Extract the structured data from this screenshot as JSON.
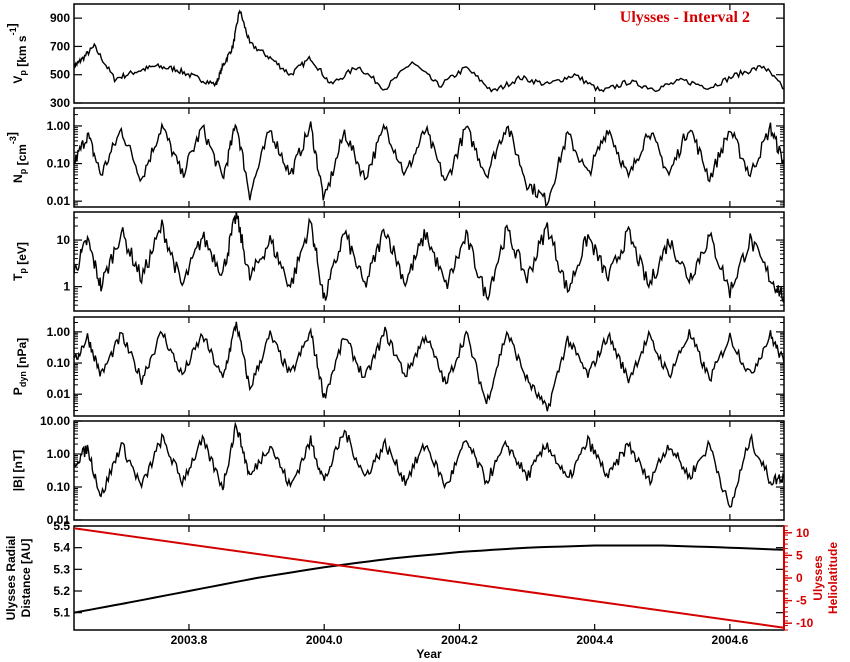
{
  "chart_data": [
    {
      "type": "line",
      "ylabel": "V_p [km s^-1]",
      "ylabel_main": "V",
      "ylabel_sub": "p",
      "ylabel_units": "[km s",
      "ylabel_sup": "-1",
      "ylabel_close": "]",
      "yscale": "linear",
      "ylim": [
        300,
        1000
      ],
      "yticks": [
        300,
        500,
        700,
        900
      ],
      "ytick_labels": [
        "300",
        "500",
        "700",
        "900"
      ],
      "annotation": "Ulysses - Interval 2",
      "annotation_color": "#d40000",
      "series": [
        {
          "x": [
            2003.63,
            2003.64,
            2003.66,
            2003.69,
            2003.72,
            2003.75,
            2003.78,
            2003.81,
            2003.84,
            2003.85,
            2003.865,
            2003.875,
            2003.89,
            2003.92,
            2003.95,
            2003.98,
            2004.01,
            2004.05,
            2004.09,
            2004.13,
            2004.17,
            2004.21,
            2004.25,
            2004.29,
            2004.33,
            2004.37,
            2004.41,
            2004.45,
            2004.49,
            2004.53,
            2004.57,
            2004.61,
            2004.65,
            2004.68
          ],
          "values": [
            560,
            600,
            700,
            470,
            520,
            560,
            540,
            480,
            430,
            560,
            700,
            960,
            720,
            620,
            500,
            620,
            430,
            560,
            400,
            590,
            420,
            550,
            380,
            480,
            430,
            500,
            380,
            450,
            400,
            460,
            410,
            500,
            560,
            400
          ]
        }
      ]
    },
    {
      "type": "line",
      "ylabel_main": "N",
      "ylabel_sub": "p",
      "ylabel_units": "[cm",
      "ylabel_sup": "-3",
      "ylabel_close": "]",
      "yscale": "log",
      "ylim": [
        0.007,
        3
      ],
      "yticks": [
        0.01,
        0.1,
        1
      ],
      "ytick_labels": [
        "0.01",
        "0.10",
        "1.00"
      ],
      "series": [
        {
          "x": [
            2003.63,
            2003.65,
            2003.67,
            2003.7,
            2003.73,
            2003.76,
            2003.79,
            2003.82,
            2003.85,
            2003.87,
            2003.89,
            2003.92,
            2003.95,
            2003.98,
            2004.0,
            2004.03,
            2004.06,
            2004.09,
            2004.12,
            2004.15,
            2004.18,
            2004.21,
            2004.24,
            2004.27,
            2004.3,
            2004.33,
            2004.36,
            2004.39,
            2004.42,
            2004.45,
            2004.48,
            2004.51,
            2004.54,
            2004.57,
            2004.6,
            2004.63,
            2004.66,
            2004.68
          ],
          "values": [
            0.1,
            0.6,
            0.05,
            0.8,
            0.04,
            1.0,
            0.05,
            0.9,
            0.04,
            1.2,
            0.015,
            0.8,
            0.05,
            1.0,
            0.01,
            0.7,
            0.04,
            1.0,
            0.05,
            0.8,
            0.03,
            0.9,
            0.05,
            1.1,
            0.03,
            0.01,
            0.6,
            0.05,
            0.9,
            0.04,
            0.8,
            0.05,
            1.0,
            0.04,
            0.8,
            0.05,
            0.9,
            0.1
          ]
        }
      ]
    },
    {
      "type": "line",
      "ylabel_main": "T",
      "ylabel_sub": "p",
      "ylabel_units": "[eV]",
      "yscale": "log",
      "ylim": [
        0.3,
        40
      ],
      "yticks": [
        1,
        10
      ],
      "ytick_labels": [
        "1",
        "10"
      ],
      "series": [
        {
          "x": [
            2003.63,
            2003.65,
            2003.67,
            2003.7,
            2003.73,
            2003.76,
            2003.79,
            2003.82,
            2003.85,
            2003.87,
            2003.89,
            2003.92,
            2003.95,
            2003.98,
            2004.0,
            2004.03,
            2004.06,
            2004.09,
            2004.12,
            2004.15,
            2004.18,
            2004.21,
            2004.24,
            2004.27,
            2004.3,
            2004.33,
            2004.36,
            2004.39,
            2004.42,
            2004.45,
            2004.48,
            2004.51,
            2004.54,
            2004.57,
            2004.6,
            2004.63,
            2004.66,
            2004.68
          ],
          "values": [
            2,
            10,
            1,
            15,
            1.5,
            20,
            1,
            12,
            2,
            35,
            1.5,
            10,
            1,
            25,
            0.5,
            15,
            1,
            18,
            1.2,
            14,
            1,
            12,
            0.6,
            16,
            1.5,
            20,
            0.8,
            12,
            1.5,
            14,
            1,
            10,
            1.5,
            12,
            0.8,
            10,
            1.5,
            0.6
          ]
        }
      ]
    },
    {
      "type": "line",
      "ylabel_main": "P",
      "ylabel_sub": "dyn",
      "ylabel_units": "[nPa]",
      "yscale": "log",
      "ylim": [
        0.002,
        3
      ],
      "yticks": [
        0.01,
        0.1,
        1
      ],
      "ytick_labels": [
        "0.01",
        "0.10",
        "1.00"
      ],
      "series": [
        {
          "x": [
            2003.63,
            2003.65,
            2003.67,
            2003.7,
            2003.73,
            2003.76,
            2003.79,
            2003.82,
            2003.85,
            2003.87,
            2003.89,
            2003.92,
            2003.95,
            2003.98,
            2004.0,
            2004.03,
            2004.06,
            2004.09,
            2004.12,
            2004.15,
            2004.18,
            2004.21,
            2004.24,
            2004.27,
            2004.3,
            2004.33,
            2004.36,
            2004.39,
            2004.42,
            2004.45,
            2004.48,
            2004.51,
            2004.54,
            2004.57,
            2004.6,
            2004.63,
            2004.66,
            2004.68
          ],
          "values": [
            0.1,
            0.7,
            0.04,
            0.8,
            0.03,
            1.0,
            0.04,
            0.8,
            0.03,
            2.0,
            0.015,
            0.8,
            0.04,
            1.0,
            0.008,
            0.7,
            0.03,
            1.0,
            0.04,
            0.8,
            0.02,
            0.9,
            0.005,
            1.0,
            0.03,
            0.003,
            0.6,
            0.04,
            0.8,
            0.03,
            0.7,
            0.04,
            0.9,
            0.03,
            0.7,
            0.04,
            0.8,
            0.1
          ]
        }
      ]
    },
    {
      "type": "line",
      "ylabel": "|B| [nT]",
      "yscale": "log",
      "ylim": [
        0.01,
        10
      ],
      "yticks": [
        0.01,
        0.1,
        1,
        10
      ],
      "ytick_labels": [
        "0.01",
        "0.10",
        "1.00",
        "10.00"
      ],
      "series": [
        {
          "x": [
            2003.63,
            2003.65,
            2003.67,
            2003.7,
            2003.73,
            2003.76,
            2003.79,
            2003.82,
            2003.85,
            2003.87,
            2003.89,
            2003.92,
            2003.95,
            2003.98,
            2004.0,
            2004.03,
            2004.06,
            2004.09,
            2004.12,
            2004.15,
            2004.18,
            2004.21,
            2004.24,
            2004.27,
            2004.3,
            2004.33,
            2004.36,
            2004.39,
            2004.42,
            2004.45,
            2004.48,
            2004.51,
            2004.54,
            2004.57,
            2004.6,
            2004.63,
            2004.66,
            2004.68
          ],
          "values": [
            0.5,
            1.5,
            0.05,
            2.0,
            0.1,
            3.0,
            0.15,
            2.5,
            0.1,
            8.0,
            0.2,
            2.0,
            0.1,
            2.5,
            0.15,
            5.0,
            0.2,
            2.0,
            0.15,
            2.0,
            0.1,
            2.5,
            0.15,
            2.0,
            0.2,
            2.0,
            0.15,
            2.5,
            0.2,
            2.0,
            0.15,
            2.0,
            0.2,
            2.0,
            0.02,
            3.0,
            0.15,
            0.2
          ]
        }
      ]
    },
    {
      "type": "line",
      "ylabel_line1": "Ulysses Radial",
      "ylabel_line2": "Distance [AU]",
      "ylabel_right_line1": "Ulysses",
      "ylabel_right_line2": "Heliolatitude",
      "yscale": "linear",
      "ylim": [
        5.02,
        5.5
      ],
      "yticks": [
        5.1,
        5.2,
        5.3,
        5.4,
        5.5
      ],
      "ytick_labels": [
        "5.1",
        "5.2",
        "5.3",
        "5.4",
        "5.5"
      ],
      "y2lim": [
        -11.5,
        11.5
      ],
      "y2ticks": [
        -10,
        -5,
        0,
        5,
        10
      ],
      "y2tick_labels": [
        "-10",
        "-5",
        "0",
        "5",
        "10"
      ],
      "xlabel": "Year",
      "xlim": [
        2003.63,
        2004.68
      ],
      "xticks": [
        2003.8,
        2004.0,
        2004.2,
        2004.4,
        2004.6
      ],
      "xtick_labels": [
        "2003.8",
        "2004.0",
        "2004.2",
        "2004.4",
        "2004.6"
      ],
      "series": [
        {
          "axis": "left",
          "color": "#000000",
          "x": [
            2003.63,
            2003.7,
            2003.8,
            2003.9,
            2004.0,
            2004.1,
            2004.2,
            2004.3,
            2004.4,
            2004.5,
            2004.6,
            2004.68
          ],
          "values": [
            5.1,
            5.14,
            5.2,
            5.26,
            5.31,
            5.35,
            5.38,
            5.4,
            5.41,
            5.41,
            5.4,
            5.39
          ]
        },
        {
          "axis": "right",
          "color": "#d40000",
          "x": [
            2003.63,
            2004.68
          ],
          "values": [
            11.0,
            -11.0
          ]
        }
      ]
    }
  ]
}
